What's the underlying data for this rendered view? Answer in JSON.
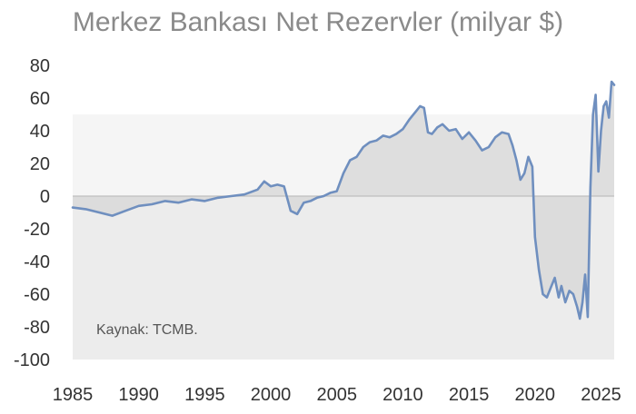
{
  "chart_data": {
    "type": "area",
    "title": "Merkez Bankası Net Rezervler (milyar $)",
    "source_note": "Kaynak: TCMB.",
    "xlabel": "",
    "ylabel": "",
    "xlim": [
      1985,
      2026
    ],
    "ylim": [
      -100,
      80
    ],
    "x_ticks": [
      1985,
      1990,
      1995,
      2000,
      2005,
      2010,
      2015,
      2020,
      2025
    ],
    "y_ticks": [
      80,
      60,
      40,
      20,
      0,
      -20,
      -40,
      -60,
      -80,
      -100
    ],
    "grid": false,
    "colors": {
      "line": "#6f8fbf",
      "fill_positive": "#dedede",
      "fill_negative": "#ececec",
      "zero_line": "#bfbfbf"
    },
    "series": [
      {
        "x": [
          1985.0,
          1986.0,
          1987.0,
          1988.0,
          1989.0,
          1990.0,
          1991.0,
          1992.0,
          1993.0,
          1994.0,
          1995.0,
          1996.0,
          1997.0,
          1998.0,
          1999.0,
          1999.5,
          2000.0,
          2000.5,
          2001.0,
          2001.5,
          2002.0,
          2002.5,
          2003.0,
          2003.5,
          2004.0,
          2004.5,
          2005.0,
          2005.5,
          2006.0,
          2006.5,
          2007.0,
          2007.5,
          2008.0,
          2008.5,
          2009.0,
          2009.5,
          2010.0,
          2010.5,
          2011.0,
          2011.3,
          2011.6,
          2011.9,
          2012.2,
          2012.6,
          2013.0,
          2013.5,
          2014.0,
          2014.5,
          2015.0,
          2015.5,
          2016.0,
          2016.5,
          2017.0,
          2017.5,
          2018.0,
          2018.3,
          2018.6,
          2018.9,
          2019.2,
          2019.5,
          2019.8,
          2020.0,
          2020.3,
          2020.6,
          2020.9,
          2021.2,
          2021.5,
          2021.8,
          2022.0,
          2022.3,
          2022.6,
          2022.9,
          2023.2,
          2023.4,
          2023.6,
          2023.8,
          2024.0,
          2024.2,
          2024.4,
          2024.6,
          2024.8,
          2025.0,
          2025.2,
          2025.4,
          2025.6,
          2025.8,
          2026.0
        ],
        "values": [
          -7,
          -8,
          -10,
          -12,
          -9,
          -6,
          -5,
          -3,
          -4,
          -2,
          -3,
          -1,
          0,
          1,
          4,
          9,
          6,
          7,
          6,
          -9,
          -11,
          -4,
          -3,
          -1,
          0,
          2,
          3,
          14,
          22,
          24,
          30,
          33,
          34,
          37,
          36,
          38,
          41,
          47,
          52,
          55,
          54,
          39,
          38,
          42,
          44,
          40,
          41,
          35,
          39,
          34,
          28,
          30,
          36,
          39,
          38,
          31,
          22,
          10,
          14,
          24,
          18,
          -25,
          -45,
          -60,
          -62,
          -56,
          -50,
          -62,
          -55,
          -65,
          -58,
          -60,
          -68,
          -75,
          -65,
          -48,
          -74,
          5,
          50,
          62,
          15,
          40,
          55,
          58,
          48,
          70,
          68
        ]
      }
    ]
  }
}
